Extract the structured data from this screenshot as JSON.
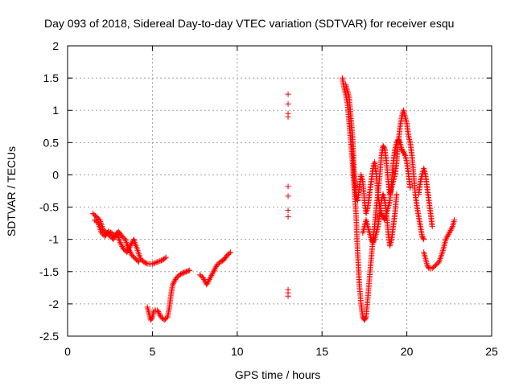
{
  "chart_data": {
    "type": "scatter",
    "title": "Day 093 of 2018, Sidereal Day-to-day VTEC variation (SDTVAR) for receiver esqu",
    "xlabel": "GPS time / hours",
    "ylabel": "SDTVAR / TECUs",
    "xlim": [
      0,
      25
    ],
    "ylim": [
      -2.5,
      2
    ],
    "xticks": [
      0,
      5,
      10,
      15,
      20,
      25
    ],
    "xtick_labels": [
      "0",
      "5",
      "10",
      "15",
      "20",
      "25"
    ],
    "yticks": [
      2,
      1.5,
      1,
      0.5,
      0,
      -0.5,
      -1,
      -1.5,
      -2,
      -2.5
    ],
    "ytick_labels": [
      "2",
      "1.5",
      "1",
      "0.5",
      "0",
      "-0.5",
      "-1",
      "-1.5",
      "-2",
      "-2.5"
    ],
    "grid": true,
    "marker": "+",
    "marker_color": "#ff0000",
    "series": [
      {
        "name": "SDTVAR",
        "segments": [
          [
            [
              1.5,
              -0.6
            ],
            [
              1.7,
              -0.65
            ],
            [
              1.9,
              -0.7
            ],
            [
              2.1,
              -0.85
            ],
            [
              2.3,
              -0.9
            ],
            [
              2.5,
              -0.95
            ],
            [
              2.7,
              -1.0
            ],
            [
              2.9,
              -0.9
            ],
            [
              3.1,
              -1.05
            ],
            [
              3.3,
              -1.15
            ],
            [
              3.5,
              -1.2
            ],
            [
              3.7,
              -1.1
            ],
            [
              3.9,
              -1.0
            ],
            [
              4.1,
              -1.15
            ],
            [
              4.3,
              -1.3
            ],
            [
              4.5,
              -1.35
            ],
            [
              4.7,
              -1.38
            ],
            [
              5.0,
              -1.38
            ],
            [
              5.3,
              -1.35
            ],
            [
              5.6,
              -1.32
            ],
            [
              5.8,
              -1.28
            ]
          ],
          [
            [
              1.6,
              -0.7
            ],
            [
              1.8,
              -0.75
            ],
            [
              2.0,
              -0.9
            ],
            [
              2.2,
              -0.95
            ],
            [
              2.4,
              -0.88
            ],
            [
              2.6,
              -0.9
            ],
            [
              2.8,
              -0.95
            ],
            [
              3.0,
              -0.88
            ],
            [
              3.2,
              -0.95
            ],
            [
              3.4,
              -1.0
            ],
            [
              3.6,
              -1.15
            ],
            [
              3.8,
              -1.25
            ],
            [
              4.0,
              -1.3
            ],
            [
              4.2,
              -1.35
            ]
          ],
          [
            [
              4.7,
              -2.05
            ],
            [
              4.8,
              -2.15
            ],
            [
              4.9,
              -2.25
            ],
            [
              5.0,
              -2.2
            ],
            [
              5.1,
              -2.1
            ],
            [
              5.3,
              -2.1
            ],
            [
              5.5,
              -2.2
            ],
            [
              5.7,
              -2.25
            ],
            [
              5.9,
              -2.2
            ],
            [
              6.0,
              -2.05
            ],
            [
              6.1,
              -1.85
            ],
            [
              6.2,
              -1.7
            ],
            [
              6.4,
              -1.6
            ],
            [
              6.6,
              -1.55
            ],
            [
              6.8,
              -1.52
            ],
            [
              7.0,
              -1.5
            ],
            [
              7.2,
              -1.48
            ]
          ],
          [
            [
              7.8,
              -1.55
            ],
            [
              8.0,
              -1.6
            ],
            [
              8.2,
              -1.7
            ],
            [
              8.4,
              -1.6
            ],
            [
              8.6,
              -1.5
            ],
            [
              8.8,
              -1.4
            ],
            [
              9.0,
              -1.35
            ],
            [
              9.2,
              -1.32
            ],
            [
              9.4,
              -1.25
            ],
            [
              9.6,
              -1.2
            ]
          ],
          [
            [
              13.0,
              1.25
            ],
            [
              13.0,
              1.1
            ],
            [
              13.0,
              0.95
            ],
            [
              13.0,
              0.9
            ],
            [
              13.0,
              -0.18
            ],
            [
              13.0,
              -0.33
            ],
            [
              13.0,
              -0.55
            ],
            [
              13.0,
              -0.65
            ],
            [
              13.0,
              -1.78
            ],
            [
              13.0,
              -1.83
            ],
            [
              13.0,
              -1.88
            ]
          ],
          [
            [
              16.2,
              1.5
            ],
            [
              16.3,
              1.35
            ],
            [
              16.4,
              1.25
            ],
            [
              16.5,
              1.1
            ],
            [
              16.6,
              0.8
            ],
            [
              16.7,
              0.5
            ],
            [
              16.8,
              0.2
            ],
            [
              16.9,
              -0.2
            ],
            [
              17.0,
              -0.6
            ],
            [
              17.1,
              -1.2
            ],
            [
              17.2,
              -1.7
            ],
            [
              17.3,
              -2.0
            ],
            [
              17.4,
              -2.2
            ],
            [
              17.5,
              -2.25
            ],
            [
              17.6,
              -2.2
            ],
            [
              17.7,
              -1.9
            ],
            [
              17.8,
              -1.6
            ],
            [
              17.9,
              -1.3
            ],
            [
              18.0,
              -1.0
            ],
            [
              18.1,
              -0.8
            ],
            [
              18.2,
              -0.5
            ],
            [
              18.3,
              -0.3
            ],
            [
              18.4,
              0.0
            ],
            [
              18.5,
              0.3
            ],
            [
              18.6,
              0.45
            ],
            [
              18.7,
              0.4
            ],
            [
              18.8,
              0.2
            ],
            [
              18.9,
              -0.1
            ],
            [
              19.0,
              -0.3
            ],
            [
              19.1,
              -0.2
            ],
            [
              19.2,
              -0.1
            ],
            [
              19.3,
              0.0
            ],
            [
              19.4,
              0.2
            ],
            [
              19.5,
              0.5
            ],
            [
              19.6,
              0.75
            ],
            [
              19.7,
              0.9
            ],
            [
              19.8,
              1.0
            ],
            [
              19.9,
              0.9
            ],
            [
              20.0,
              0.8
            ],
            [
              20.1,
              0.6
            ],
            [
              20.2,
              0.5
            ],
            [
              20.3,
              0.3
            ],
            [
              20.4,
              0.0
            ],
            [
              20.5,
              -0.3
            ],
            [
              20.6,
              -0.5
            ],
            [
              20.7,
              -0.65
            ],
            [
              20.8,
              -0.8
            ],
            [
              20.9,
              -0.95
            ],
            [
              21.0,
              -1.0
            ]
          ],
          [
            [
              16.4,
              1.4
            ],
            [
              16.5,
              1.3
            ],
            [
              16.6,
              1.2
            ],
            [
              16.7,
              0.9
            ],
            [
              16.8,
              0.6
            ],
            [
              16.9,
              0.0
            ],
            [
              17.0,
              -0.3
            ],
            [
              17.1,
              -0.4
            ],
            [
              17.2,
              -0.2
            ],
            [
              17.3,
              0.0
            ],
            [
              17.4,
              -0.1
            ],
            [
              17.5,
              -0.4
            ],
            [
              17.6,
              -0.6
            ],
            [
              17.7,
              -0.5
            ],
            [
              17.8,
              -0.3
            ],
            [
              17.9,
              -0.1
            ],
            [
              18.0,
              0.1
            ],
            [
              18.1,
              0.2
            ],
            [
              18.2,
              0.0
            ],
            [
              18.3,
              -0.3
            ],
            [
              18.4,
              -0.5
            ],
            [
              18.5,
              -0.6
            ],
            [
              18.6,
              -0.65
            ],
            [
              18.7,
              -0.7
            ],
            [
              18.8,
              -0.6
            ],
            [
              18.9,
              -0.5
            ],
            [
              19.0,
              -0.4
            ],
            [
              19.1,
              -0.1
            ],
            [
              19.2,
              0.2
            ],
            [
              19.3,
              0.4
            ],
            [
              19.4,
              0.5
            ],
            [
              19.5,
              0.55
            ],
            [
              19.6,
              0.5
            ],
            [
              19.7,
              0.4
            ],
            [
              19.8,
              0.35
            ],
            [
              19.9,
              0.3
            ],
            [
              20.0,
              0.2
            ],
            [
              20.1,
              0.0
            ],
            [
              20.2,
              -0.2
            ]
          ],
          [
            [
              17.4,
              -0.9
            ],
            [
              17.5,
              -0.8
            ],
            [
              17.6,
              -0.7
            ],
            [
              17.7,
              -0.8
            ],
            [
              17.8,
              -0.9
            ],
            [
              17.9,
              -1.0
            ],
            [
              18.0,
              -1.05
            ],
            [
              18.1,
              -1.0
            ],
            [
              18.2,
              -0.9
            ],
            [
              18.3,
              -0.8
            ],
            [
              18.4,
              -0.6
            ],
            [
              18.5,
              -0.4
            ],
            [
              18.6,
              -0.3
            ],
            [
              18.7,
              -0.4
            ],
            [
              18.8,
              -0.6
            ],
            [
              18.9,
              -0.9
            ],
            [
              19.0,
              -1.1
            ],
            [
              19.1,
              -1.0
            ],
            [
              19.2,
              -0.8
            ],
            [
              19.3,
              -0.6
            ],
            [
              19.4,
              -0.3
            ]
          ],
          [
            [
              21.0,
              -1.2
            ],
            [
              21.1,
              -1.3
            ],
            [
              21.2,
              -1.4
            ],
            [
              21.3,
              -1.45
            ],
            [
              21.5,
              -1.45
            ],
            [
              21.7,
              -1.4
            ],
            [
              21.9,
              -1.35
            ],
            [
              22.1,
              -1.2
            ],
            [
              22.3,
              -1.0
            ],
            [
              22.5,
              -0.9
            ],
            [
              22.7,
              -0.8
            ],
            [
              22.8,
              -0.7
            ]
          ],
          [
            [
              20.7,
              -0.3
            ],
            [
              20.8,
              -0.1
            ],
            [
              20.9,
              0.0
            ],
            [
              21.0,
              0.1
            ],
            [
              21.1,
              0.0
            ],
            [
              21.2,
              -0.2
            ],
            [
              21.3,
              -0.4
            ],
            [
              21.4,
              -0.6
            ],
            [
              21.5,
              -0.8
            ]
          ]
        ]
      }
    ]
  }
}
